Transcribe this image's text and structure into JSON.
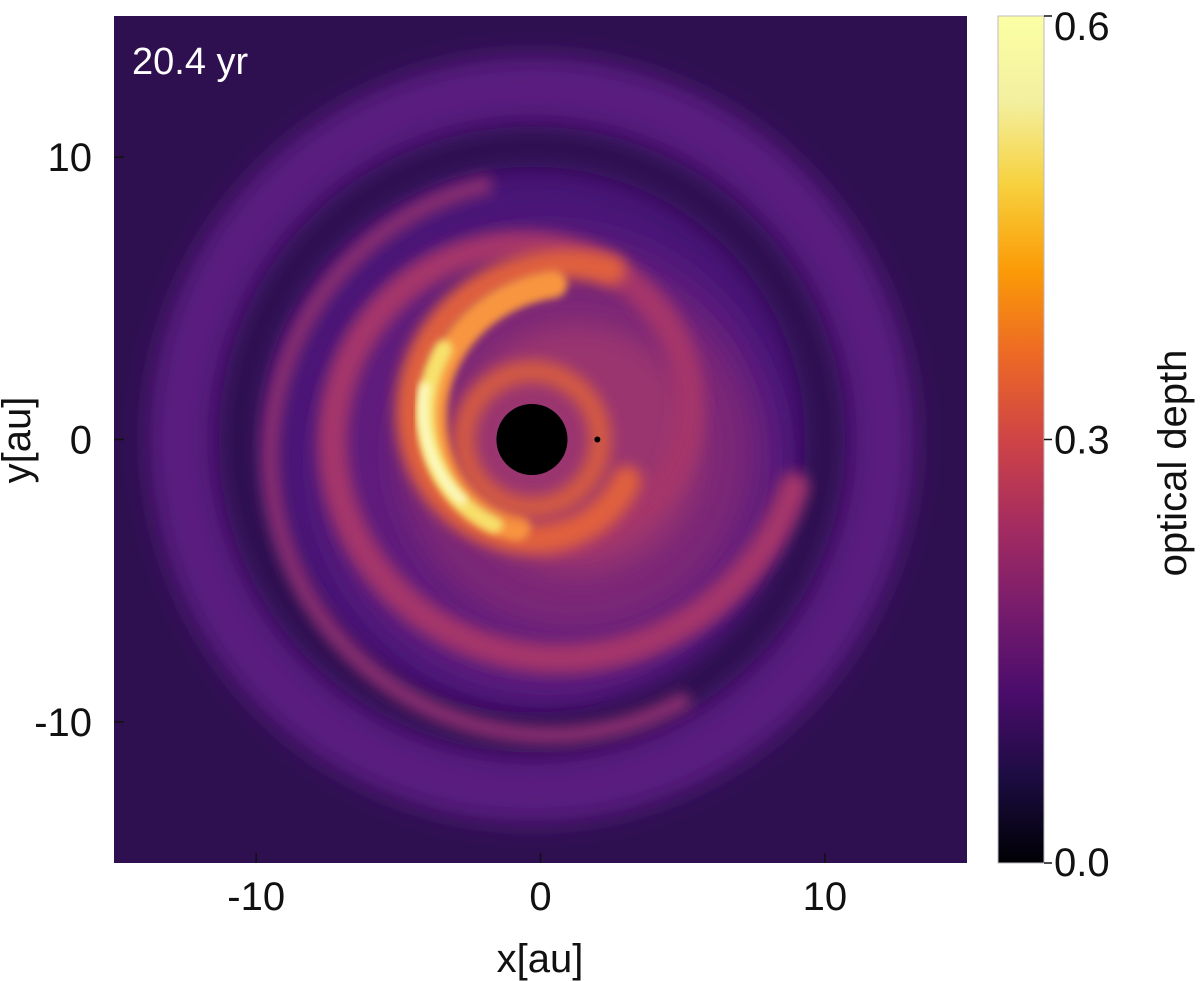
{
  "chart_data": {
    "type": "heatmap",
    "annotation": "20.4 yr",
    "xlabel": "x[au]",
    "ylabel": "y[au]",
    "xlim": [
      -15,
      15
    ],
    "ylim": [
      -15,
      15
    ],
    "x_ticks": [
      {
        "value": -10,
        "label": "-10"
      },
      {
        "value": 0,
        "label": "0"
      },
      {
        "value": 10,
        "label": "10"
      }
    ],
    "y_ticks": [
      {
        "value": 10,
        "label": "10"
      },
      {
        "value": 0,
        "label": "0"
      },
      {
        "value": -10,
        "label": "-10"
      }
    ],
    "colorbar": {
      "label": "optical depth",
      "colormap": "inferno",
      "range": [
        0.0,
        0.6
      ],
      "ticks": [
        {
          "value": 0.6,
          "label": "0.6"
        },
        {
          "value": 0.3,
          "label": "0.3"
        },
        {
          "value": 0.0,
          "label": "0.0"
        }
      ]
    },
    "features": {
      "central_mask": {
        "x": -0.3,
        "y": 0.0,
        "radius": 1.25
      },
      "point_marker": {
        "x": 2.0,
        "y": 0.0
      },
      "spiral_peak_value": 0.6,
      "background_value": 0.12
    },
    "grid": false,
    "legend": "none"
  }
}
